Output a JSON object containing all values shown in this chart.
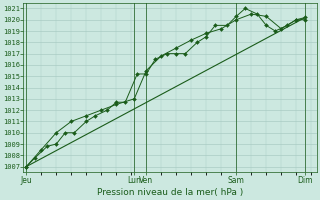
{
  "title": "Pression niveau de la mer( hPa )",
  "ylabel_values": [
    1007,
    1008,
    1009,
    1010,
    1011,
    1012,
    1013,
    1014,
    1015,
    1016,
    1017,
    1018,
    1019,
    1020,
    1021
  ],
  "ylim": [
    1006.5,
    1021.5
  ],
  "background_color": "#cce8e0",
  "grid_color": "#aaccC4",
  "line_color": "#1a5c1a",
  "marker_color": "#1a5c1a",
  "x_ticks": [
    0,
    36,
    40,
    70,
    93
  ],
  "x_tick_labels": [
    "Jeu",
    "Lun",
    "Ven",
    "Sam",
    "Dim"
  ],
  "x_vlines": [
    0,
    36,
    40,
    70,
    93
  ],
  "xlim": [
    -1,
    97
  ],
  "series0_x": [
    0,
    3,
    7,
    10,
    13,
    16,
    20,
    23,
    27,
    30,
    33,
    37,
    40,
    43,
    47,
    50,
    53,
    57,
    60,
    63,
    67,
    70,
    73,
    77,
    80,
    83,
    87,
    90,
    93
  ],
  "series0_y": [
    1007.0,
    1007.8,
    1008.8,
    1009.0,
    1010.0,
    1010.0,
    1011.0,
    1011.5,
    1012.0,
    1012.7,
    1012.7,
    1015.2,
    1015.2,
    1016.5,
    1017.0,
    1017.0,
    1017.0,
    1018.0,
    1018.5,
    1019.5,
    1019.5,
    1020.3,
    1021.0,
    1020.5,
    1019.5,
    1019.0,
    1019.5,
    1020.0,
    1020.0
  ],
  "series1_x": [
    0,
    5,
    10,
    15,
    20,
    25,
    30,
    36,
    40,
    45,
    50,
    55,
    60,
    65,
    70,
    75,
    80,
    85,
    90,
    93
  ],
  "series1_y": [
    1007.0,
    1008.5,
    1010.0,
    1011.0,
    1011.5,
    1012.0,
    1012.5,
    1013.0,
    1015.5,
    1016.8,
    1017.5,
    1018.2,
    1018.8,
    1019.2,
    1020.0,
    1020.5,
    1020.3,
    1019.2,
    1020.0,
    1020.2
  ],
  "trend_x": [
    0,
    93
  ],
  "trend_y": [
    1007.0,
    1020.2
  ]
}
